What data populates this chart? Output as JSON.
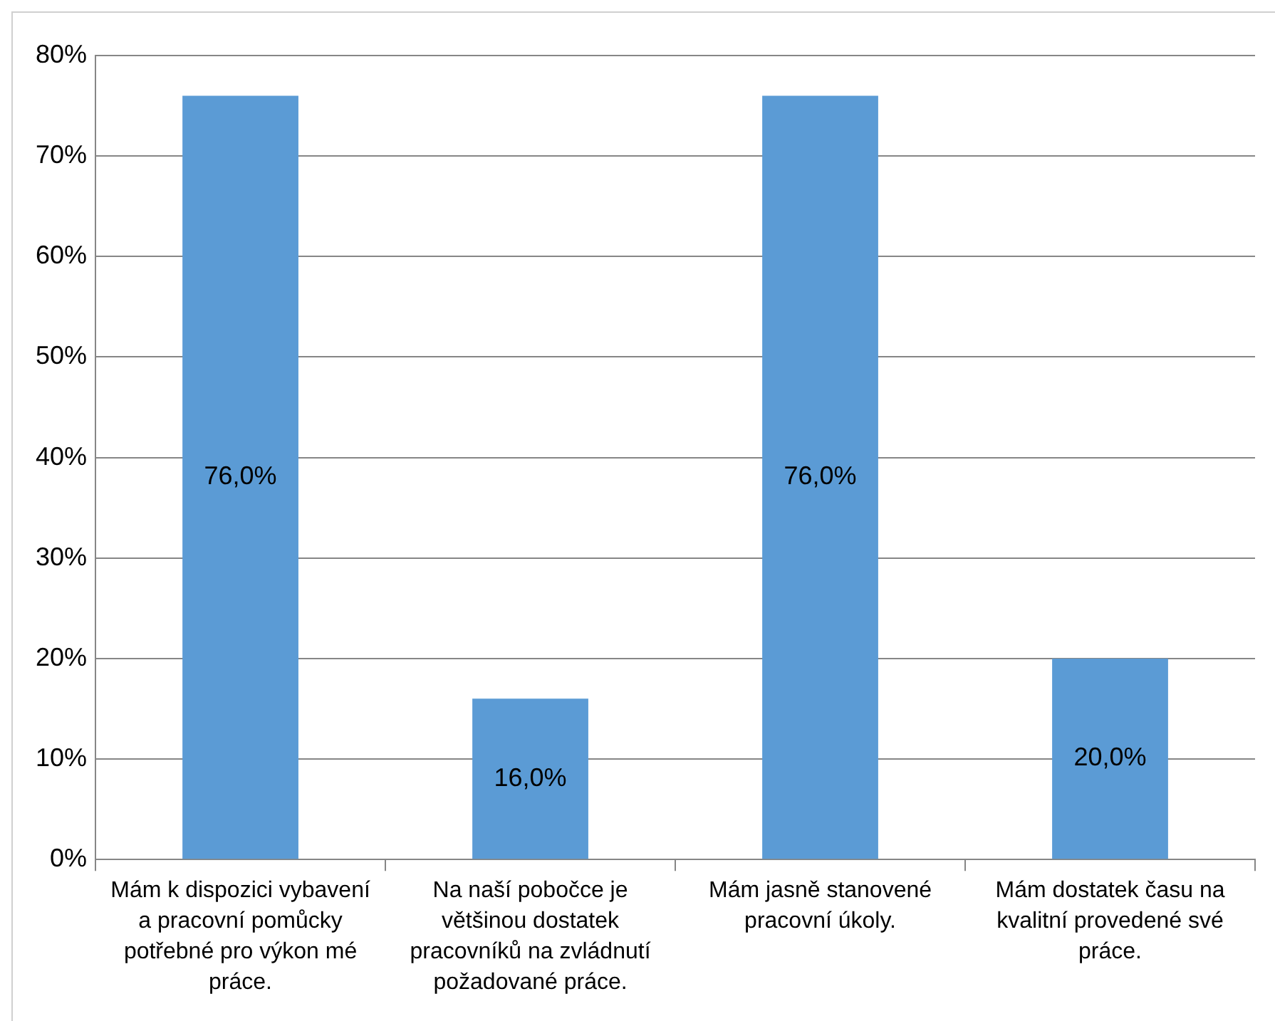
{
  "chart_data": {
    "type": "bar",
    "categories": [
      "Mám k dispozici vybavení a pracovní pomůcky potřebné pro výkon mé práce.",
      "Na naší pobočce je většinou dostatek pracovníků na zvládnutí požadované práce.",
      "Mám jasně stanovené pracovní úkoly.",
      "Mám dostatek času na kvalitní provedené své práce."
    ],
    "values": [
      76,
      16,
      76,
      20
    ],
    "value_labels": [
      "76,0%",
      "16,0%",
      "76,0%",
      "20,0%"
    ],
    "color": "#5b9bd5",
    "ylim": [
      0,
      80
    ],
    "yticks": [
      {
        "value": 0,
        "label": "0%"
      },
      {
        "value": 10,
        "label": "10%"
      },
      {
        "value": 20,
        "label": "20%"
      },
      {
        "value": 30,
        "label": "30%"
      },
      {
        "value": 40,
        "label": "40%"
      },
      {
        "value": 50,
        "label": "50%"
      },
      {
        "value": 60,
        "label": "60%"
      },
      {
        "value": 70,
        "label": "70%"
      },
      {
        "value": 80,
        "label": "80%"
      }
    ],
    "grid": "y",
    "legend": false
  }
}
